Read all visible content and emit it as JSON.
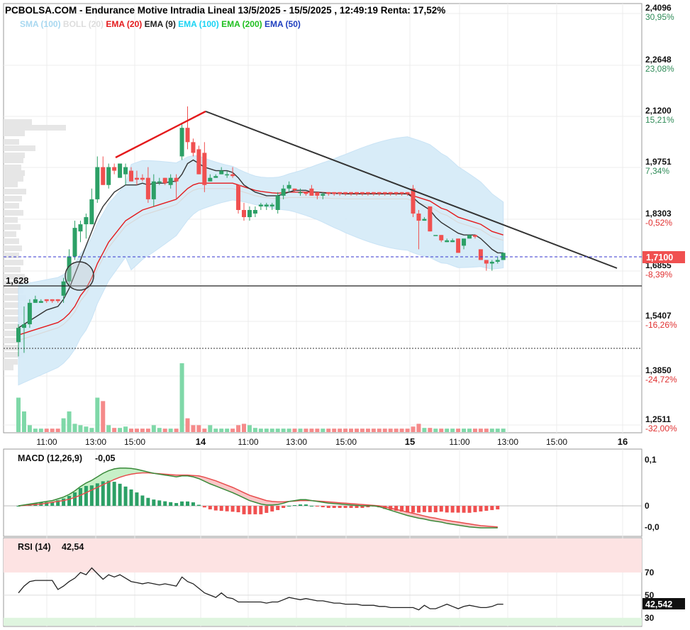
{
  "header": {
    "title": "PCBOLSA.COM - Endurance Motive Intradia Lineal 13/5/2025 - 15/5/2025 , 12:49:19 Renta: 17,52%"
  },
  "legend": [
    {
      "label": "SMA (100)",
      "color": "#a8d8f0"
    },
    {
      "label": "BOLL (20)",
      "color": "#dddddd"
    },
    {
      "label": "EMA (20)",
      "color": "#e41a1c"
    },
    {
      "label": "EMA (9)",
      "color": "#222222"
    },
    {
      "label": "EMA (100)",
      "color": "#19d3f3"
    },
    {
      "label": "EMA (200)",
      "color": "#1fbf1f"
    },
    {
      "label": "EMA (50)",
      "color": "#1f3fbf"
    }
  ],
  "price_axis": [
    {
      "price": "2,4096",
      "pct": "30,95%",
      "pct_color": "#2e8b57"
    },
    {
      "price": "2,2648",
      "pct": "23,08%",
      "pct_color": "#2e8b57"
    },
    {
      "price": "2,1200",
      "pct": "15,21%",
      "pct_color": "#2e8b57"
    },
    {
      "price": "1,9751",
      "pct": "7,34%",
      "pct_color": "#2e8b57"
    },
    {
      "price": "1,8303",
      "pct": "-0,52%",
      "pct_color": "#e03030"
    },
    {
      "price": "1,6855",
      "pct": "-8,39%",
      "pct_color": "#e03030"
    },
    {
      "price": "1,5407",
      "pct": "-16,26%",
      "pct_color": "#e03030"
    },
    {
      "price": "1,3850",
      "pct": "-24,72%",
      "pct_color": "#e03030"
    },
    {
      "price": "1,2511",
      "pct": "-32,00%",
      "pct_color": "#e03030"
    }
  ],
  "current_price_label": "1,7100",
  "support_label": "1,628",
  "time_axis": [
    {
      "label": "11:00",
      "bold": false
    },
    {
      "label": "13:00",
      "bold": false
    },
    {
      "label": "15:00",
      "bold": false
    },
    {
      "label": "14",
      "bold": true
    },
    {
      "label": "11:00",
      "bold": false
    },
    {
      "label": "13:00",
      "bold": false
    },
    {
      "label": "15:00",
      "bold": false
    },
    {
      "label": "15",
      "bold": true
    },
    {
      "label": "11:00",
      "bold": false
    },
    {
      "label": "13:00",
      "bold": false
    },
    {
      "label": "15:00",
      "bold": false
    },
    {
      "label": "16",
      "bold": true
    }
  ],
  "macd": {
    "label": "MACD (12,26,9)",
    "value": "-0,05",
    "axis": [
      "0,1",
      "0",
      "-0,0"
    ]
  },
  "rsi": {
    "label": "RSI (14)",
    "value": "42,54",
    "axis": [
      "70",
      "50",
      "30"
    ],
    "current": "42,542"
  },
  "colors": {
    "up": "#2ca066",
    "down": "#f05050",
    "band": "#d6ebf8",
    "trend_down": "#333333",
    "trend_up": "#e41a1c",
    "current_line": "#3333cc"
  },
  "chart_data": {
    "type": "candlestick",
    "title": "Endurance Motive Intradia Lineal 13/5/2025 - 15/5/2025",
    "ylim": [
      1.22,
      2.41
    ],
    "candles": [
      {
        "o": 1.46,
        "h": 1.51,
        "l": 1.42,
        "c": 1.5
      },
      {
        "o": 1.5,
        "h": 1.56,
        "l": 1.43,
        "c": 1.51
      },
      {
        "o": 1.51,
        "h": 1.58,
        "l": 1.5,
        "c": 1.57
      },
      {
        "o": 1.57,
        "h": 1.59,
        "l": 1.57,
        "c": 1.58
      },
      {
        "o": 1.57,
        "h": 1.58,
        "l": 1.57,
        "c": 1.575
      },
      {
        "o": 1.58,
        "h": 1.58,
        "l": 1.57,
        "c": 1.575
      },
      {
        "o": 1.58,
        "h": 1.58,
        "l": 1.57,
        "c": 1.575
      },
      {
        "o": 1.58,
        "h": 1.58,
        "l": 1.57,
        "c": 1.575
      },
      {
        "o": 1.59,
        "h": 1.64,
        "l": 1.57,
        "c": 1.63
      },
      {
        "o": 1.63,
        "h": 1.72,
        "l": 1.62,
        "c": 1.7
      },
      {
        "o": 1.7,
        "h": 1.8,
        "l": 1.69,
        "c": 1.78
      },
      {
        "o": 1.77,
        "h": 1.8,
        "l": 1.74,
        "c": 1.79
      },
      {
        "o": 1.79,
        "h": 1.82,
        "l": 1.75,
        "c": 1.81
      },
      {
        "o": 1.79,
        "h": 1.89,
        "l": 1.79,
        "c": 1.86
      },
      {
        "o": 1.86,
        "h": 1.98,
        "l": 1.85,
        "c": 1.95
      },
      {
        "o": 1.95,
        "h": 1.98,
        "l": 1.9,
        "c": 1.9
      },
      {
        "o": 1.9,
        "h": 1.96,
        "l": 1.89,
        "c": 1.95
      },
      {
        "o": 1.95,
        "h": 1.96,
        "l": 1.93,
        "c": 1.94
      },
      {
        "o": 1.92,
        "h": 1.96,
        "l": 1.92,
        "c": 1.96
      },
      {
        "o": 1.93,
        "h": 1.96,
        "l": 1.9,
        "c": 1.95
      },
      {
        "o": 1.94,
        "h": 1.95,
        "l": 1.91,
        "c": 1.91
      },
      {
        "o": 1.92,
        "h": 1.94,
        "l": 1.9,
        "c": 1.915
      },
      {
        "o": 1.92,
        "h": 1.93,
        "l": 1.91,
        "c": 1.915
      },
      {
        "o": 1.92,
        "h": 1.95,
        "l": 1.85,
        "c": 1.86
      },
      {
        "o": 1.86,
        "h": 1.93,
        "l": 1.84,
        "c": 1.91
      },
      {
        "o": 1.91,
        "h": 1.92,
        "l": 1.9,
        "c": 1.91
      },
      {
        "o": 1.92,
        "h": 1.92,
        "l": 1.9,
        "c": 1.905
      },
      {
        "o": 1.9,
        "h": 1.93,
        "l": 1.89,
        "c": 1.92
      },
      {
        "o": 1.92,
        "h": 1.93,
        "l": 1.86,
        "c": 1.91
      },
      {
        "o": 1.98,
        "h": 2.07,
        "l": 1.97,
        "c": 2.06
      },
      {
        "o": 2.06,
        "h": 2.12,
        "l": 2.0,
        "c": 2.02
      },
      {
        "o": 2.02,
        "h": 2.03,
        "l": 1.98,
        "c": 1.99
      },
      {
        "o": 2.0,
        "h": 2.01,
        "l": 1.93,
        "c": 1.93
      },
      {
        "o": 1.99,
        "h": 2.02,
        "l": 1.88,
        "c": 1.9
      },
      {
        "o": 1.91,
        "h": 1.93,
        "l": 1.91,
        "c": 1.92
      },
      {
        "o": 1.92,
        "h": 1.93,
        "l": 1.92,
        "c": 1.925
      },
      {
        "o": 1.93,
        "h": 1.95,
        "l": 1.93,
        "c": 1.94
      },
      {
        "o": 1.93,
        "h": 1.94,
        "l": 1.92,
        "c": 1.93
      },
      {
        "o": 1.93,
        "h": 1.95,
        "l": 1.92,
        "c": 1.925
      },
      {
        "o": 1.9,
        "h": 1.9,
        "l": 1.82,
        "c": 1.83
      },
      {
        "o": 1.83,
        "h": 1.85,
        "l": 1.8,
        "c": 1.81
      },
      {
        "o": 1.81,
        "h": 1.84,
        "l": 1.8,
        "c": 1.83
      },
      {
        "o": 1.82,
        "h": 1.84,
        "l": 1.81,
        "c": 1.83
      },
      {
        "o": 1.84,
        "h": 1.85,
        "l": 1.83,
        "c": 1.845
      },
      {
        "o": 1.84,
        "h": 1.85,
        "l": 1.83,
        "c": 1.845
      },
      {
        "o": 1.84,
        "h": 1.85,
        "l": 1.83,
        "c": 1.845
      },
      {
        "o": 1.83,
        "h": 1.88,
        "l": 1.82,
        "c": 1.87
      },
      {
        "o": 1.87,
        "h": 1.9,
        "l": 1.86,
        "c": 1.89
      },
      {
        "o": 1.89,
        "h": 1.91,
        "l": 1.88,
        "c": 1.9
      },
      {
        "o": 1.89,
        "h": 1.89,
        "l": 1.88,
        "c": 1.885
      },
      {
        "o": 1.88,
        "h": 1.89,
        "l": 1.87,
        "c": 1.88
      },
      {
        "o": 1.88,
        "h": 1.88,
        "l": 1.87,
        "c": 1.875
      },
      {
        "o": 1.89,
        "h": 1.9,
        "l": 1.87,
        "c": 1.87
      },
      {
        "o": 1.88,
        "h": 1.88,
        "l": 1.86,
        "c": 1.87
      },
      {
        "o": 1.87,
        "h": 1.88,
        "l": 1.86,
        "c": 1.875
      },
      {
        "o": 1.88,
        "h": 1.88,
        "l": 1.87,
        "c": 1.875
      },
      {
        "o": 1.88,
        "h": 1.88,
        "l": 1.87,
        "c": 1.875
      },
      {
        "o": 1.88,
        "h": 1.88,
        "l": 1.87,
        "c": 1.875
      },
      {
        "o": 1.88,
        "h": 1.88,
        "l": 1.87,
        "c": 1.875
      },
      {
        "o": 1.88,
        "h": 1.88,
        "l": 1.87,
        "c": 1.875
      },
      {
        "o": 1.88,
        "h": 1.88,
        "l": 1.87,
        "c": 1.875
      },
      {
        "o": 1.88,
        "h": 1.88,
        "l": 1.87,
        "c": 1.875
      },
      {
        "o": 1.88,
        "h": 1.88,
        "l": 1.87,
        "c": 1.875
      },
      {
        "o": 1.88,
        "h": 1.88,
        "l": 1.87,
        "c": 1.875
      },
      {
        "o": 1.88,
        "h": 1.88,
        "l": 1.87,
        "c": 1.875
      },
      {
        "o": 1.88,
        "h": 1.88,
        "l": 1.87,
        "c": 1.875
      },
      {
        "o": 1.88,
        "h": 1.88,
        "l": 1.87,
        "c": 1.875
      },
      {
        "o": 1.88,
        "h": 1.88,
        "l": 1.87,
        "c": 1.875
      },
      {
        "o": 1.88,
        "h": 1.88,
        "l": 1.87,
        "c": 1.875
      },
      {
        "o": 1.88,
        "h": 1.88,
        "l": 1.87,
        "c": 1.875
      },
      {
        "o": 1.89,
        "h": 1.9,
        "l": 1.81,
        "c": 1.82
      },
      {
        "o": 1.82,
        "h": 1.83,
        "l": 1.72,
        "c": 1.8
      },
      {
        "o": 1.8,
        "h": 1.81,
        "l": 1.8,
        "c": 1.805
      },
      {
        "o": 1.84,
        "h": 1.84,
        "l": 1.77,
        "c": 1.77
      },
      {
        "o": 1.76,
        "h": 1.76,
        "l": 1.76,
        "c": 1.76
      },
      {
        "o": 1.76,
        "h": 1.76,
        "l": 1.74,
        "c": 1.745
      },
      {
        "o": 1.74,
        "h": 1.75,
        "l": 1.74,
        "c": 1.745
      },
      {
        "o": 1.74,
        "h": 1.75,
        "l": 1.74,
        "c": 1.745
      },
      {
        "o": 1.75,
        "h": 1.75,
        "l": 1.71,
        "c": 1.71
      },
      {
        "o": 1.73,
        "h": 1.75,
        "l": 1.72,
        "c": 1.75
      },
      {
        "o": 1.75,
        "h": 1.76,
        "l": 1.75,
        "c": 1.76
      },
      {
        "o": 1.76,
        "h": 1.76,
        "l": 1.75,
        "c": 1.755
      },
      {
        "o": 1.72,
        "h": 1.72,
        "l": 1.69,
        "c": 1.69
      },
      {
        "o": 1.69,
        "h": 1.69,
        "l": 1.66,
        "c": 1.68
      },
      {
        "o": 1.68,
        "h": 1.69,
        "l": 1.66,
        "c": 1.685
      },
      {
        "o": 1.685,
        "h": 1.7,
        "l": 1.68,
        "c": 1.69
      },
      {
        "o": 1.69,
        "h": 1.71,
        "l": 1.69,
        "c": 1.71
      }
    ],
    "ema9": [
      1.5,
      1.51,
      1.52,
      1.53,
      1.54,
      1.55,
      1.555,
      1.56,
      1.58,
      1.61,
      1.65,
      1.69,
      1.73,
      1.77,
      1.81,
      1.84,
      1.86,
      1.88,
      1.89,
      1.9,
      1.9,
      1.9,
      1.905,
      1.9,
      1.905,
      1.905,
      1.905,
      1.91,
      1.91,
      1.93,
      1.96,
      1.97,
      1.96,
      1.95,
      1.945,
      1.94,
      1.94,
      1.94,
      1.935,
      1.92,
      1.9,
      1.89,
      1.88,
      1.875,
      1.87,
      1.87,
      1.87,
      1.875,
      1.88,
      1.885,
      1.885,
      1.885,
      1.88,
      1.88,
      1.878,
      1.877,
      1.876,
      1.876,
      1.875,
      1.875,
      1.875,
      1.875,
      1.875,
      1.875,
      1.875,
      1.875,
      1.875,
      1.875,
      1.875,
      1.875,
      1.865,
      1.85,
      1.84,
      1.83,
      1.81,
      1.795,
      1.785,
      1.775,
      1.765,
      1.76,
      1.76,
      1.76,
      1.75,
      1.735,
      1.72,
      1.71,
      1.71
    ],
    "ema20": [
      1.48,
      1.485,
      1.49,
      1.495,
      1.5,
      1.505,
      1.51,
      1.515,
      1.525,
      1.54,
      1.56,
      1.59,
      1.61,
      1.64,
      1.68,
      1.71,
      1.74,
      1.76,
      1.78,
      1.8,
      1.81,
      1.82,
      1.83,
      1.835,
      1.84,
      1.845,
      1.85,
      1.855,
      1.86,
      1.875,
      1.89,
      1.9,
      1.905,
      1.905,
      1.905,
      1.905,
      1.905,
      1.905,
      1.905,
      1.9,
      1.895,
      1.89,
      1.885,
      1.882,
      1.88,
      1.878,
      1.877,
      1.878,
      1.88,
      1.88,
      1.88,
      1.88,
      1.88,
      1.88,
      1.879,
      1.878,
      1.877,
      1.877,
      1.876,
      1.876,
      1.876,
      1.876,
      1.876,
      1.876,
      1.876,
      1.876,
      1.876,
      1.876,
      1.876,
      1.876,
      1.87,
      1.865,
      1.86,
      1.855,
      1.845,
      1.835,
      1.83,
      1.82,
      1.81,
      1.805,
      1.8,
      1.795,
      1.79,
      1.78,
      1.77,
      1.765,
      1.76
    ],
    "volume": [
      0.5,
      0.3,
      0.1,
      0.05,
      0.05,
      0.05,
      0.05,
      0.05,
      0.2,
      0.3,
      0.12,
      0.1,
      0.08,
      0.06,
      0.5,
      0.45,
      0.1,
      0.06,
      0.06,
      0.08,
      0.05,
      0.05,
      0.05,
      0.05,
      0.1,
      0.06,
      0.05,
      0.05,
      0.05,
      1.0,
      0.2,
      0.1,
      0.1,
      0.05,
      0.1,
      0.05,
      0.05,
      0.05,
      0.05,
      0.1,
      0.12,
      0.1,
      0.06,
      0.05,
      0.05,
      0.05,
      0.05,
      0.05,
      0.05,
      0.05,
      0.05,
      0.05,
      0.05,
      0.05,
      0.05,
      0.05,
      0.05,
      0.05,
      0.05,
      0.05,
      0.05,
      0.05,
      0.05,
      0.05,
      0.05,
      0.05,
      0.05,
      0.05,
      0.05,
      0.05,
      0.08,
      0.12,
      0.06,
      0.06,
      0.05,
      0.05,
      0.05,
      0.05,
      0.05,
      0.05,
      0.05,
      0.05,
      0.05,
      0.05,
      0.05,
      0.05,
      0.05
    ],
    "macd": {
      "line": [
        0.0,
        0.002,
        0.004,
        0.006,
        0.008,
        0.01,
        0.012,
        0.016,
        0.02,
        0.026,
        0.034,
        0.044,
        0.052,
        0.058,
        0.066,
        0.074,
        0.08,
        0.084,
        0.086,
        0.086,
        0.085,
        0.083,
        0.08,
        0.077,
        0.074,
        0.072,
        0.07,
        0.068,
        0.066,
        0.068,
        0.068,
        0.066,
        0.062,
        0.056,
        0.05,
        0.045,
        0.04,
        0.035,
        0.03,
        0.024,
        0.018,
        0.012,
        0.008,
        0.004,
        0.002,
        0.002,
        0.003,
        0.006,
        0.01,
        0.012,
        0.014,
        0.014,
        0.012,
        0.01,
        0.008,
        0.006,
        0.005,
        0.004,
        0.003,
        0.002,
        0.001,
        0.0,
        0.0,
        0.0,
        -0.002,
        -0.006,
        -0.01,
        -0.014,
        -0.018,
        -0.022,
        -0.025,
        -0.028,
        -0.03,
        -0.033,
        -0.035,
        -0.037,
        -0.04,
        -0.042,
        -0.044,
        -0.046,
        -0.048,
        -0.049,
        -0.05,
        -0.05,
        -0.05,
        -0.05
      ],
      "signal": [
        0.0,
        0.001,
        0.002,
        0.003,
        0.004,
        0.006,
        0.008,
        0.01,
        0.012,
        0.015,
        0.019,
        0.024,
        0.03,
        0.036,
        0.042,
        0.048,
        0.054,
        0.06,
        0.065,
        0.069,
        0.072,
        0.074,
        0.075,
        0.075,
        0.074,
        0.073,
        0.072,
        0.071,
        0.07,
        0.07,
        0.07,
        0.069,
        0.068,
        0.065,
        0.061,
        0.057,
        0.052,
        0.047,
        0.042,
        0.036,
        0.03,
        0.024,
        0.02,
        0.016,
        0.012,
        0.01,
        0.009,
        0.009,
        0.01,
        0.011,
        0.012,
        0.012,
        0.012,
        0.011,
        0.01,
        0.009,
        0.008,
        0.007,
        0.006,
        0.005,
        0.004,
        0.003,
        0.002,
        0.001,
        0.0,
        -0.002,
        -0.005,
        -0.008,
        -0.011,
        -0.014,
        -0.017,
        -0.02,
        -0.023,
        -0.026,
        -0.028,
        -0.031,
        -0.033,
        -0.035,
        -0.037,
        -0.039,
        -0.041,
        -0.043,
        -0.045,
        -0.046,
        -0.047,
        -0.048
      ]
    },
    "rsi": [
      52,
      58,
      62,
      63,
      63,
      63,
      63,
      55,
      58,
      62,
      65,
      70,
      68,
      74,
      69,
      64,
      68,
      66,
      68,
      65,
      62,
      61,
      60,
      61,
      60,
      59,
      60,
      59,
      58,
      66,
      62,
      60,
      56,
      52,
      50,
      48,
      52,
      48,
      47,
      44,
      44,
      44,
      44,
      44,
      43,
      44,
      44,
      46,
      48,
      47,
      46,
      47,
      46,
      45,
      45,
      44,
      43,
      43,
      42,
      42,
      42,
      41,
      41,
      41,
      40,
      40,
      39,
      39,
      39,
      39,
      39,
      37,
      41,
      38,
      38,
      40,
      42,
      40,
      38,
      40,
      41,
      40,
      39,
      39,
      40,
      42,
      42
    ]
  }
}
